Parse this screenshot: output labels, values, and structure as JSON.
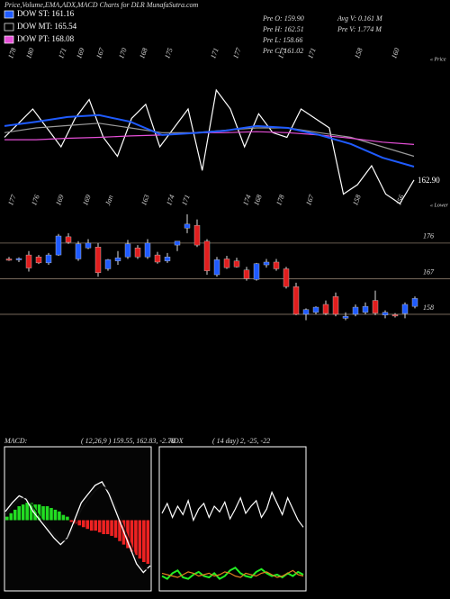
{
  "header": {
    "title": "Price,Volume,EMA,ADX,MACD Charts for DLR MunafaSutra.com"
  },
  "legend": [
    {
      "label": "DOW ST: 161.16",
      "color": "#1f5bff"
    },
    {
      "label": "DOW MT: 165.54",
      "color": "#000000"
    },
    {
      "label": "DOW PT: 168.08",
      "color": "#e64fd8"
    }
  ],
  "info": {
    "col1": [
      "Pre O: 159.90",
      "Pre H: 162.51",
      "Pre L: 158.66",
      "Pre C: 161.02"
    ],
    "col2": [
      "Avg V: 0.161 M",
      "Pre V: 1.774 M"
    ]
  },
  "chart_data": [
    {
      "type": "line",
      "top_labels": [
        178,
        180,
        171,
        169,
        167,
        170,
        168,
        175,
        171,
        177,
        173,
        171,
        158,
        160
      ],
      "side_label": "« Price",
      "end_label": "162.90",
      "ylim": [
        160,
        180
      ],
      "series": [
        {
          "color": "#ffffff",
          "values": [
            170,
            173,
            176,
            172,
            168,
            174,
            178,
            170,
            166,
            174,
            177,
            168,
            172,
            176,
            163,
            180,
            176,
            168,
            175,
            171,
            170,
            176,
            174,
            172,
            158,
            160,
            164,
            158,
            156,
            161
          ]
        },
        {
          "color": "#9a9a9a",
          "values": [
            171,
            172,
            172.5,
            173,
            172,
            171,
            171,
            171.5,
            172,
            172,
            171,
            170,
            168,
            166
          ]
        },
        {
          "color": "#e64fd8",
          "values": [
            169.5,
            169.5,
            169.8,
            170,
            170.3,
            170.5,
            171,
            171,
            171.2,
            171,
            170.5,
            169.8,
            169,
            168.5
          ]
        },
        {
          "color": "#1f5bff",
          "values": [
            172.4,
            173.3,
            174.3,
            174.7,
            173.3,
            170.5,
            170.9,
            171.4,
            172.4,
            172,
            170.5,
            168.6,
            165.7,
            163.8
          ]
        }
      ]
    },
    {
      "type": "candlestick",
      "top_labels": [
        177,
        176,
        169,
        169,
        "Jan",
        163,
        174,
        171,
        174,
        168,
        178,
        167,
        158,
        156
      ],
      "side_label": "« Lower",
      "ylim": [
        154,
        186
      ],
      "yticks": [
        176,
        167,
        158
      ],
      "grid": true,
      "up_color": "#1f5bff",
      "down_color": "#e01e1e",
      "candles": [
        {
          "open": 172,
          "high": 172.5,
          "low": 171.5,
          "close": 171.8
        },
        {
          "open": 171.8,
          "high": 172.4,
          "low": 171.2,
          "close": 172.1
        },
        {
          "open": 173,
          "high": 174,
          "low": 168.8,
          "close": 169.7
        },
        {
          "open": 172.5,
          "high": 173,
          "low": 170.7,
          "close": 171
        },
        {
          "open": 171,
          "high": 173.5,
          "low": 170.5,
          "close": 173
        },
        {
          "open": 173,
          "high": 178.3,
          "low": 172.8,
          "close": 177.8
        },
        {
          "open": 177.6,
          "high": 178.5,
          "low": 175.8,
          "close": 176.2
        },
        {
          "open": 172,
          "high": 176.5,
          "low": 171.5,
          "close": 175.8
        },
        {
          "open": 174.8,
          "high": 177,
          "low": 174.5,
          "close": 176
        },
        {
          "open": 175,
          "high": 176,
          "low": 167.5,
          "close": 168.5
        },
        {
          "open": 169.5,
          "high": 172,
          "low": 169,
          "close": 171.8
        },
        {
          "open": 171.5,
          "high": 174,
          "low": 170.5,
          "close": 172.3
        },
        {
          "open": 172.5,
          "high": 176.8,
          "low": 172,
          "close": 175.8
        },
        {
          "open": 174.8,
          "high": 175.5,
          "low": 172,
          "close": 172.5
        },
        {
          "open": 172.5,
          "high": 177,
          "low": 172,
          "close": 176
        },
        {
          "open": 173,
          "high": 173.8,
          "low": 170.8,
          "close": 171.2
        },
        {
          "open": 171.5,
          "high": 173.5,
          "low": 171,
          "close": 172.5
        },
        {
          "open": 175.5,
          "high": 176.5,
          "low": 174,
          "close": 176.5
        },
        {
          "open": 179.8,
          "high": 183.3,
          "low": 178.5,
          "close": 180.8
        },
        {
          "open": 180.5,
          "high": 182,
          "low": 175,
          "close": 175.5
        },
        {
          "open": 176.5,
          "high": 177,
          "low": 168,
          "close": 169
        },
        {
          "open": 168,
          "high": 172.5,
          "low": 167.5,
          "close": 171.8
        },
        {
          "open": 172,
          "high": 172.8,
          "low": 169.5,
          "close": 169.8
        },
        {
          "open": 171.5,
          "high": 172.3,
          "low": 169.8,
          "close": 170
        },
        {
          "open": 169.2,
          "high": 170,
          "low": 166.5,
          "close": 167
        },
        {
          "open": 166.8,
          "high": 171,
          "low": 166.5,
          "close": 170.8
        },
        {
          "open": 170.5,
          "high": 172,
          "low": 169.8,
          "close": 171.2
        },
        {
          "open": 171.2,
          "high": 172,
          "low": 169,
          "close": 169.5
        },
        {
          "open": 169.5,
          "high": 170,
          "low": 164.5,
          "close": 165
        },
        {
          "open": 165,
          "high": 166,
          "low": 157.8,
          "close": 158
        },
        {
          "open": 158,
          "high": 159.5,
          "low": 156.5,
          "close": 159.2
        },
        {
          "open": 158.5,
          "high": 160,
          "low": 158,
          "close": 159.8
        },
        {
          "open": 160.5,
          "high": 161.5,
          "low": 157.8,
          "close": 158.2
        },
        {
          "open": 162.5,
          "high": 163.5,
          "low": 157.5,
          "close": 158
        },
        {
          "open": 157,
          "high": 158.5,
          "low": 156.5,
          "close": 157.5
        },
        {
          "open": 158,
          "high": 160.5,
          "low": 157.5,
          "close": 159.8
        },
        {
          "open": 158.5,
          "high": 161,
          "low": 158,
          "close": 160
        },
        {
          "open": 161.5,
          "high": 164,
          "low": 157.8,
          "close": 158.3
        },
        {
          "open": 157.8,
          "high": 159,
          "low": 157,
          "close": 158.5
        },
        {
          "open": 157.9,
          "high": 158.3,
          "low": 157.2,
          "close": 157.8
        },
        {
          "open": 158.2,
          "high": 161,
          "low": 157,
          "close": 160.5
        },
        {
          "open": 160,
          "high": 162.5,
          "low": 159.5,
          "close": 162
        }
      ]
    },
    {
      "type": "macd",
      "title": "MACD:",
      "subtitle": "( 12,26,9 ) 159.55, 162.83, -2.78",
      "ylim": [
        -40,
        40
      ],
      "pos_color": "#22dd22",
      "neg_color": "#ee2222",
      "histogram": [
        2,
        4,
        6,
        8,
        9,
        10,
        10,
        9,
        9,
        8,
        8,
        7,
        6,
        5,
        3,
        2,
        -1,
        -2,
        -3,
        -4,
        -5,
        -6,
        -6,
        -7,
        -8,
        -8,
        -9,
        -10,
        -12,
        -14,
        -16,
        -18,
        -20,
        -22,
        -24,
        -25
      ],
      "series": [
        {
          "color": "#ffffff",
          "values": [
            5,
            10,
            14,
            12,
            5,
            0,
            -5,
            -10,
            -14,
            -10,
            0,
            10,
            15,
            20,
            22,
            15,
            5,
            -5,
            -15,
            -25,
            -30,
            -26
          ]
        },
        {
          "color": "#111111",
          "values": [
            3,
            8,
            12,
            13,
            8,
            2,
            -3,
            -8,
            -12,
            -11,
            -3,
            6,
            12,
            17,
            20,
            17,
            8,
            -2,
            -12,
            -22,
            -28,
            -28
          ]
        }
      ]
    },
    {
      "type": "adx",
      "title": "ADX",
      "subtitle": "( 14 day) 2, -25, -22",
      "ylim": [
        0,
        100
      ],
      "series": [
        {
          "color": "#ffffff",
          "values": [
            55,
            62,
            52,
            60,
            54,
            64,
            50,
            58,
            62,
            52,
            60,
            56,
            63,
            51,
            58,
            66,
            55,
            60,
            64,
            52,
            58,
            70,
            62,
            54,
            66,
            58,
            50,
            45
          ]
        },
        {
          "color": "#22ee22",
          "values": [
            10,
            8,
            12,
            14,
            9,
            8,
            11,
            13,
            10,
            9,
            12,
            8,
            10,
            14,
            16,
            12,
            10,
            9,
            13,
            15,
            12,
            10,
            11,
            9,
            12,
            10,
            13,
            11
          ]
        },
        {
          "color": "#e08020",
          "values": [
            12,
            11,
            10,
            9,
            11,
            13,
            12,
            10,
            11,
            12,
            10,
            11,
            13,
            12,
            10,
            9,
            12,
            11,
            10,
            12,
            13,
            11,
            9,
            10,
            12,
            14,
            11,
            10
          ]
        }
      ]
    }
  ]
}
